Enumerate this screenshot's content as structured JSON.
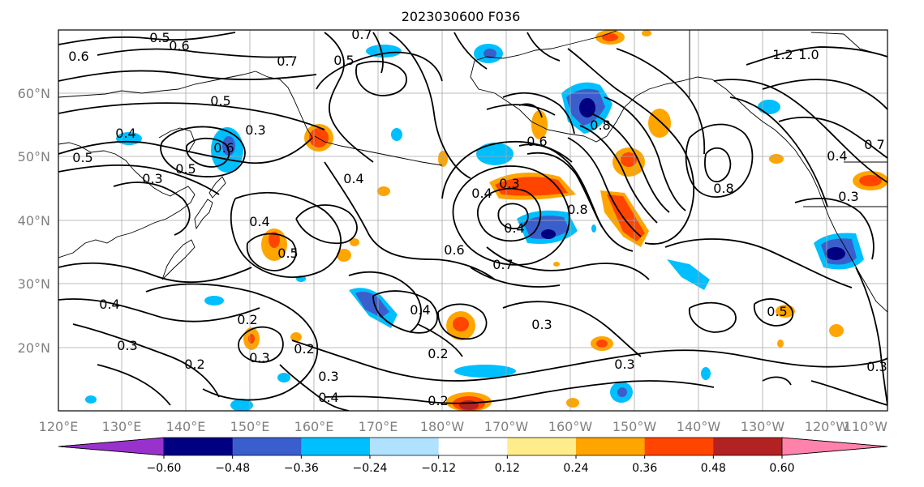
{
  "title": "2023030600 F036",
  "map": {
    "lon_ticks": [
      "120°E",
      "130°E",
      "140°E",
      "150°E",
      "160°E",
      "170°E",
      "180°W",
      "170°W",
      "160°W",
      "150°W",
      "140°W",
      "130°W",
      "120°W",
      "110°W"
    ],
    "lat_ticks": [
      "20°N",
      "30°N",
      "40°N",
      "50°N",
      "60°N"
    ],
    "contour_labels": [
      "0.5",
      "0.6",
      "0.7",
      "0.7",
      "0.5",
      "0.6",
      "0.5",
      "0.3",
      "0.4",
      "0.6",
      "0.5",
      "0.3",
      "0.5",
      "0.4",
      "0.8",
      "0.8",
      "1.2",
      "1.0",
      "0.7",
      "0.4",
      "0.3",
      "0.4",
      "0.5",
      "0.3",
      "0.4",
      "0.7",
      "0.6",
      "0.8",
      "0.4",
      "0.6",
      "0.2",
      "0.3",
      "0.2",
      "0.3",
      "0.4",
      "0.2",
      "0.4",
      "0.3",
      "0.2",
      "0.5",
      "0.3",
      "0.3",
      "0.2",
      "0.3",
      "0.4"
    ]
  },
  "colorbar": {
    "ticks": [
      "−0.60",
      "−0.48",
      "−0.36",
      "−0.24",
      "−0.12",
      "0.12",
      "0.24",
      "0.36",
      "0.48",
      "0.60"
    ],
    "colors": [
      "#9932cc",
      "#000080",
      "#3a5fcd",
      "#00bfff",
      "#b0e2ff",
      "#ffffff",
      "#ffec8b",
      "#ffa500",
      "#ff4500",
      "#b22222",
      "#ff82ab"
    ]
  }
}
